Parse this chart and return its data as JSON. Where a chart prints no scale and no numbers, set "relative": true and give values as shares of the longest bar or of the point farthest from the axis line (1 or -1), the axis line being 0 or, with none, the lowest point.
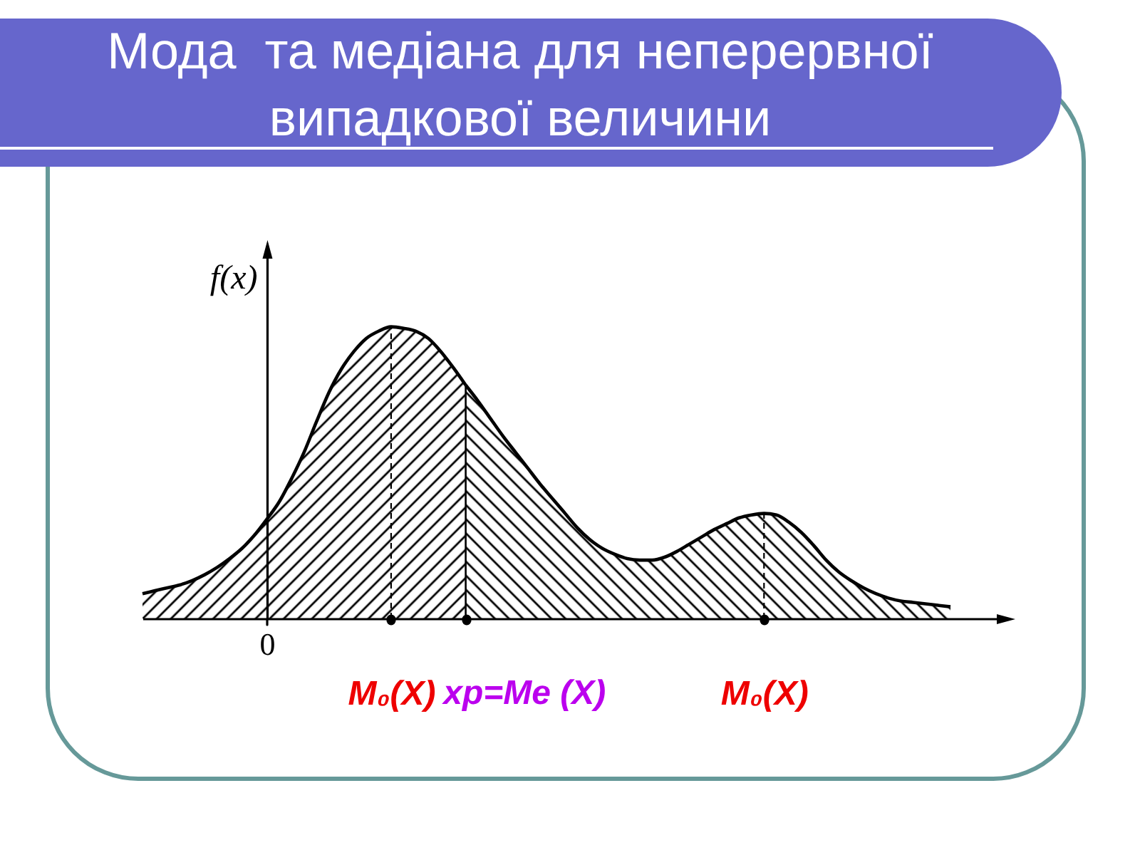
{
  "chart_data": {
    "type": "area",
    "title": "Мода  та медіана для неперервної випадкової величини",
    "ylabel": "f(x)",
    "relative": true,
    "categories": [
      null,
      null,
      null,
      null,
      null,
      null,
      null,
      null,
      null,
      null,
      "0",
      null,
      null,
      null,
      null,
      null,
      null,
      null,
      null,
      null,
      "M₀(X)",
      null,
      null,
      null,
      null,
      null,
      null,
      null,
      null,
      null,
      null,
      null,
      null,
      null,
      null,
      null,
      null,
      null,
      null,
      null,
      null,
      null,
      null,
      null,
      null,
      null,
      null,
      null,
      null,
      null,
      "M₀(X)",
      null,
      null,
      null,
      null,
      null,
      null,
      null,
      null,
      null,
      null,
      null,
      null,
      null,
      null,
      null
    ],
    "series": [
      {
        "color": "#000000",
        "values": [
          0.085,
          0.095,
          0.105,
          0.115,
          0.13,
          0.15,
          0.175,
          0.205,
          0.24,
          0.285,
          0.34,
          0.4,
          0.48,
          0.57,
          0.675,
          0.775,
          0.855,
          0.915,
          0.96,
          0.985,
          1,
          0.995,
          0.985,
          0.96,
          0.915,
          0.86,
          0.8,
          null,
          null,
          null,
          null,
          null,
          null,
          null,
          null,
          null,
          null,
          null,
          null,
          null,
          null,
          null,
          null,
          null,
          null,
          null,
          null,
          null,
          null,
          null,
          null,
          null,
          null,
          null,
          null,
          null,
          null,
          null,
          null,
          null,
          null,
          null,
          null,
          null,
          null,
          null
        ]
      },
      {
        "color": "#000000",
        "values": [
          null,
          null,
          null,
          null,
          null,
          null,
          null,
          null,
          null,
          null,
          null,
          null,
          null,
          null,
          null,
          null,
          null,
          null,
          null,
          null,
          null,
          null,
          null,
          null,
          null,
          null,
          0.8,
          0.745,
          0.685,
          0.625,
          0.57,
          0.515,
          0.46,
          0.41,
          0.36,
          0.31,
          0.27,
          0.24,
          0.22,
          0.205,
          0.2,
          0.2,
          0.21,
          0.23,
          0.255,
          0.28,
          0.305,
          0.325,
          0.345,
          0.355,
          0.36,
          0.355,
          0.33,
          0.295,
          0.25,
          0.2,
          0.16,
          0.13,
          0.105,
          0.085,
          0.07,
          0.06,
          0.055,
          0.05,
          0.045,
          0.04
        ]
      }
    ],
    "annotations": [
      "xp=Me (X)"
    ]
  }
}
